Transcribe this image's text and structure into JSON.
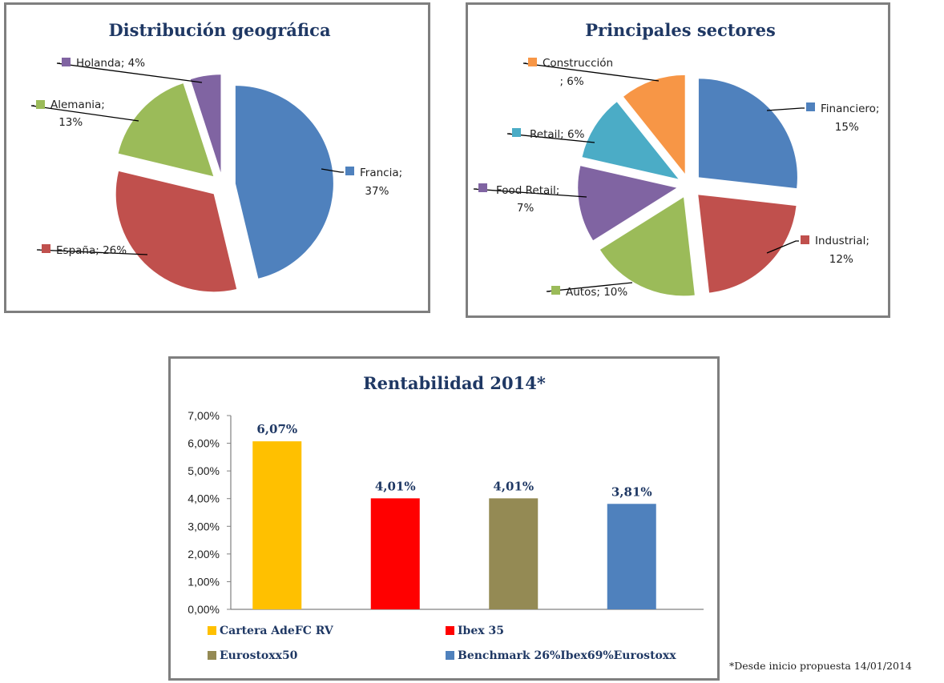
{
  "chart_data": [
    {
      "type": "pie",
      "title": "Distribución geográfica",
      "exploded": true,
      "slices": [
        {
          "name": "Francia",
          "value": 37,
          "label_line1": "Francia;",
          "label_line2": "37%",
          "color": "#4f81bd"
        },
        {
          "name": "España",
          "value": 26,
          "label_line1": "España; 26%",
          "label_line2": "",
          "color": "#c0504d"
        },
        {
          "name": "Alemania",
          "value": 13,
          "label_line1": "Alemania;",
          "label_line2": "13%",
          "color": "#9bbb59"
        },
        {
          "name": "Holanda",
          "value": 4,
          "label_line1": "Holanda; 4%",
          "label_line2": "",
          "color": "#8064a2"
        }
      ]
    },
    {
      "type": "pie",
      "title": "Principales sectores",
      "exploded": true,
      "slices": [
        {
          "name": "Financiero",
          "value": 15,
          "label_line1": "Financiero;",
          "label_line2": "15%",
          "color": "#4f81bd"
        },
        {
          "name": "Industrial",
          "value": 12,
          "label_line1": "Industrial;",
          "label_line2": "12%",
          "color": "#c0504d"
        },
        {
          "name": "Autos",
          "value": 10,
          "label_line1": "Autos; 10%",
          "label_line2": "",
          "color": "#9bbb59"
        },
        {
          "name": "Food Retail",
          "value": 7,
          "label_line1": "Food Retail;",
          "label_line2": "7%",
          "color": "#8064a2"
        },
        {
          "name": "Retail",
          "value": 6,
          "label_line1": "Retail; 6%",
          "label_line2": "",
          "color": "#4bacc6"
        },
        {
          "name": "Construcción",
          "value": 6,
          "label_line1": "Construcción",
          "label_line2": "; 6%",
          "color": "#f79646"
        }
      ]
    },
    {
      "type": "bar",
      "title": "Rentabilidad 2014*",
      "categories": [
        "Cartera AdeFC  RV",
        "Ibex 35",
        "Eurostoxx50",
        "Benchmark 26%Ibex69%Eurostoxx"
      ],
      "values": [
        6.07,
        4.01,
        4.01,
        3.81
      ],
      "data_labels": [
        "6,07%",
        "4,01%",
        "4,01%",
        "3,81%"
      ],
      "colors": [
        "#ffc000",
        "#ff0000",
        "#948a54",
        "#4f81bd"
      ],
      "ylim": [
        0,
        7
      ],
      "yticks": [
        "0,00%",
        "1,00%",
        "2,00%",
        "3,00%",
        "4,00%",
        "5,00%",
        "6,00%",
        "7,00%"
      ],
      "legend": "bottom",
      "grid": false
    }
  ],
  "footnote": "*Desde inicio propuesta 14/01/2014"
}
